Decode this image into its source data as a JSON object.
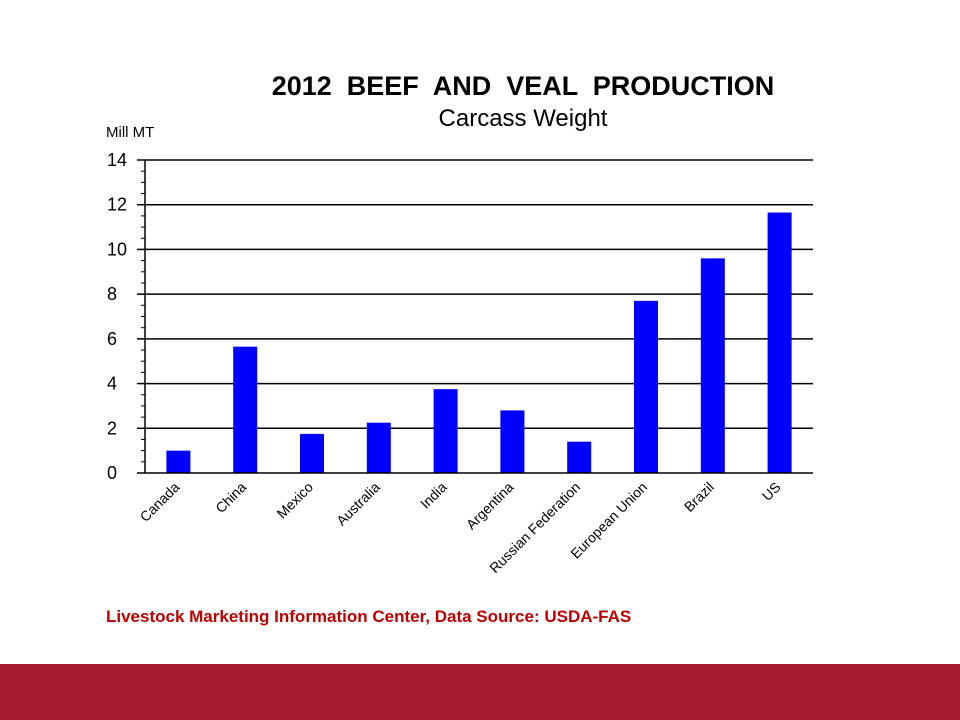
{
  "chart_data": {
    "type": "bar",
    "title": "2012  BEEF  AND  VEAL  PRODUCTION",
    "subtitle": "Carcass Weight",
    "ylabel": "Mill MT",
    "xlabel": "",
    "categories": [
      "Canada",
      "China",
      "Mexico",
      "Australia",
      "India",
      "Argentina",
      "Russian Federation",
      "European Union",
      "Brazil",
      "US"
    ],
    "values": [
      1.0,
      5.65,
      1.75,
      2.25,
      3.75,
      2.8,
      1.4,
      7.7,
      9.6,
      11.65
    ],
    "ylim": [
      0,
      14
    ],
    "yticks": [
      0,
      2,
      4,
      6,
      8,
      10,
      12,
      14
    ],
    "grid": true,
    "legend": "none",
    "bar_color": "#0000ff"
  },
  "footer": {
    "source_text": "Livestock Marketing Information Center, Data Source:  USDA-FAS",
    "source_color": "#c00000",
    "bar_color": "#a6192e"
  }
}
